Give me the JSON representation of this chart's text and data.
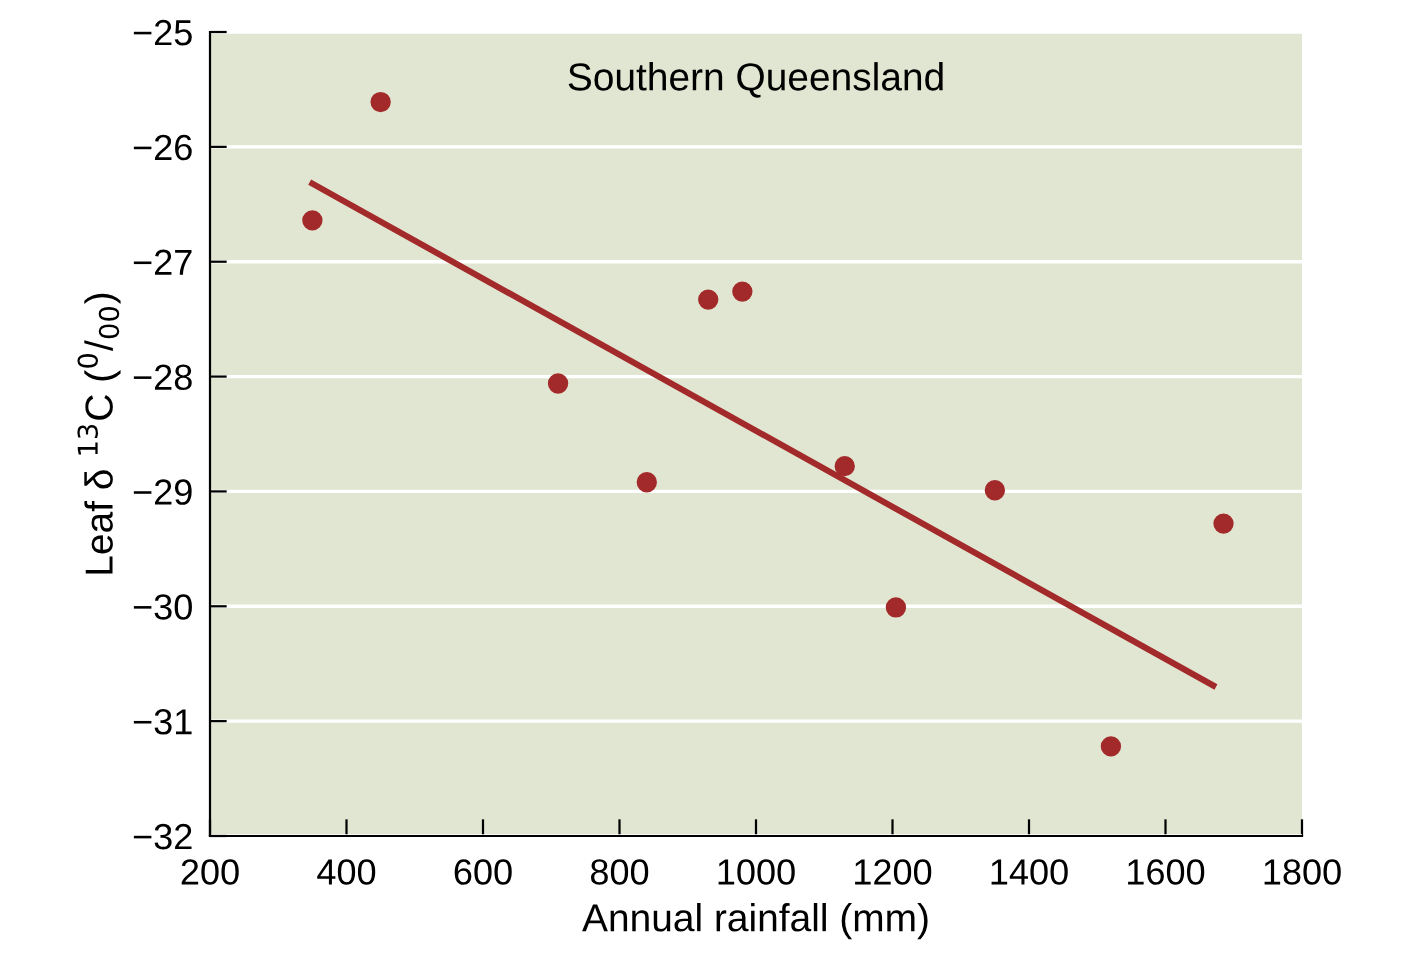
{
  "chart_data": {
    "type": "scatter",
    "xlabel": "Annual rainfall (mm)",
    "ylabel": "Leaf δ $^{13}$C ($^{0}$/$_{00}$)",
    "annotations": [
      "Southern Queensland"
    ],
    "xlim": [
      200,
      1800
    ],
    "xticks": [
      200,
      400,
      600,
      800,
      1000,
      1200,
      1400,
      1600,
      1800
    ],
    "ylim": [
      -32,
      -25
    ],
    "yticks": [
      -32,
      -31,
      -30,
      -29,
      -28,
      -27,
      -26,
      -25
    ],
    "grid": "y",
    "series": [
      {
        "marker": "circle",
        "color": "#a32a2a",
        "x": [
          350,
          450,
          710,
          840,
          930,
          980,
          1130,
          1205,
          1350,
          1520,
          1685
        ],
        "values": [
          -26.64,
          -25.61,
          -28.06,
          -28.92,
          -27.33,
          -27.26,
          -28.78,
          -30.01,
          -28.99,
          -31.22,
          -29.28
        ]
      },
      {
        "type": "line",
        "color": "#a32a2a",
        "x": [
          350,
          1670
        ],
        "values": [
          -26.32,
          -30.69
        ]
      }
    ]
  }
}
